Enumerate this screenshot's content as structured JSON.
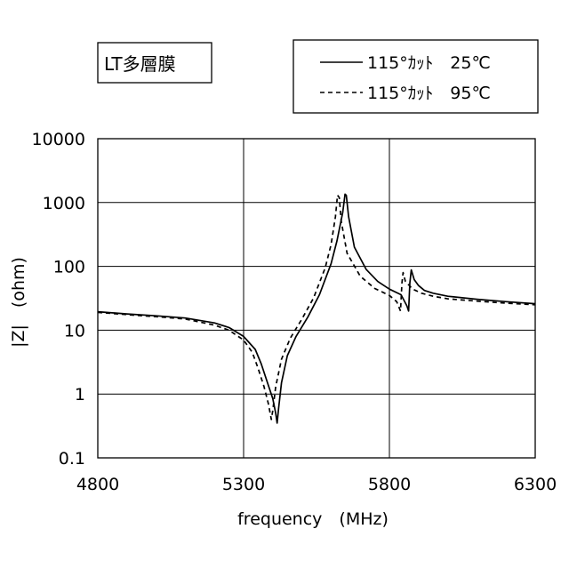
{
  "chart_data": {
    "type": "line",
    "title": "LT多層膜",
    "xlabel": "frequency　(MHz)",
    "ylabel": "|Z|　(ohm)",
    "xlim": [
      4800,
      6300
    ],
    "ylim": [
      0.1,
      10000
    ],
    "yscale": "log",
    "xticks": [
      "4800",
      "5300",
      "5800",
      "6300"
    ],
    "yticks": [
      "0.1",
      "1",
      "10",
      "100",
      "1000",
      "10000"
    ],
    "grid": true,
    "legend_position": "top-right",
    "series": [
      {
        "name": "115°ｶｯﾄ　25℃",
        "line_style": "solid",
        "color": "#000000",
        "points": [
          [
            4800,
            19.5
          ],
          [
            4900,
            18
          ],
          [
            5000,
            16.8
          ],
          [
            5100,
            15.5
          ],
          [
            5200,
            13
          ],
          [
            5250,
            11
          ],
          [
            5300,
            8
          ],
          [
            5340,
            5
          ],
          [
            5360,
            3
          ],
          [
            5380,
            1.6
          ],
          [
            5400,
            0.85
          ],
          [
            5410,
            0.5
          ],
          [
            5415,
            0.35
          ],
          [
            5420,
            0.6
          ],
          [
            5430,
            1.5
          ],
          [
            5450,
            4
          ],
          [
            5480,
            8
          ],
          [
            5520,
            16
          ],
          [
            5560,
            36
          ],
          [
            5600,
            110
          ],
          [
            5620,
            250
          ],
          [
            5640,
            700
          ],
          [
            5648,
            1350
          ],
          [
            5652,
            1300
          ],
          [
            5660,
            600
          ],
          [
            5680,
            200
          ],
          [
            5720,
            90
          ],
          [
            5760,
            58
          ],
          [
            5800,
            44
          ],
          [
            5840,
            36
          ],
          [
            5860,
            24
          ],
          [
            5866,
            20
          ],
          [
            5870,
            55
          ],
          [
            5875,
            88
          ],
          [
            5885,
            62
          ],
          [
            5900,
            50
          ],
          [
            5920,
            42
          ],
          [
            5950,
            38
          ],
          [
            6000,
            34
          ],
          [
            6100,
            30.5
          ],
          [
            6200,
            28
          ],
          [
            6300,
            26
          ]
        ]
      },
      {
        "name": "115°ｶｯﾄ　95℃",
        "line_style": "dashed",
        "color": "#000000",
        "points": [
          [
            4800,
            19
          ],
          [
            4900,
            17.5
          ],
          [
            5000,
            16.3
          ],
          [
            5100,
            15
          ],
          [
            5200,
            12
          ],
          [
            5250,
            10
          ],
          [
            5300,
            7
          ],
          [
            5330,
            4.5
          ],
          [
            5350,
            2.5
          ],
          [
            5370,
            1.3
          ],
          [
            5385,
            0.7
          ],
          [
            5395,
            0.4
          ],
          [
            5400,
            0.55
          ],
          [
            5410,
            1.3
          ],
          [
            5430,
            3.5
          ],
          [
            5460,
            7.5
          ],
          [
            5500,
            15
          ],
          [
            5540,
            32
          ],
          [
            5580,
            95
          ],
          [
            5600,
            220
          ],
          [
            5615,
            600
          ],
          [
            5622,
            1300
          ],
          [
            5628,
            1200
          ],
          [
            5635,
            500
          ],
          [
            5655,
            160
          ],
          [
            5700,
            70
          ],
          [
            5750,
            45
          ],
          [
            5800,
            35
          ],
          [
            5825,
            28
          ],
          [
            5838,
            20
          ],
          [
            5843,
            55
          ],
          [
            5847,
            80
          ],
          [
            5855,
            58
          ],
          [
            5880,
            44
          ],
          [
            5910,
            38
          ],
          [
            5950,
            34
          ],
          [
            6000,
            31
          ],
          [
            6100,
            28.5
          ],
          [
            6200,
            26.5
          ],
          [
            6300,
            25
          ]
        ]
      }
    ]
  }
}
